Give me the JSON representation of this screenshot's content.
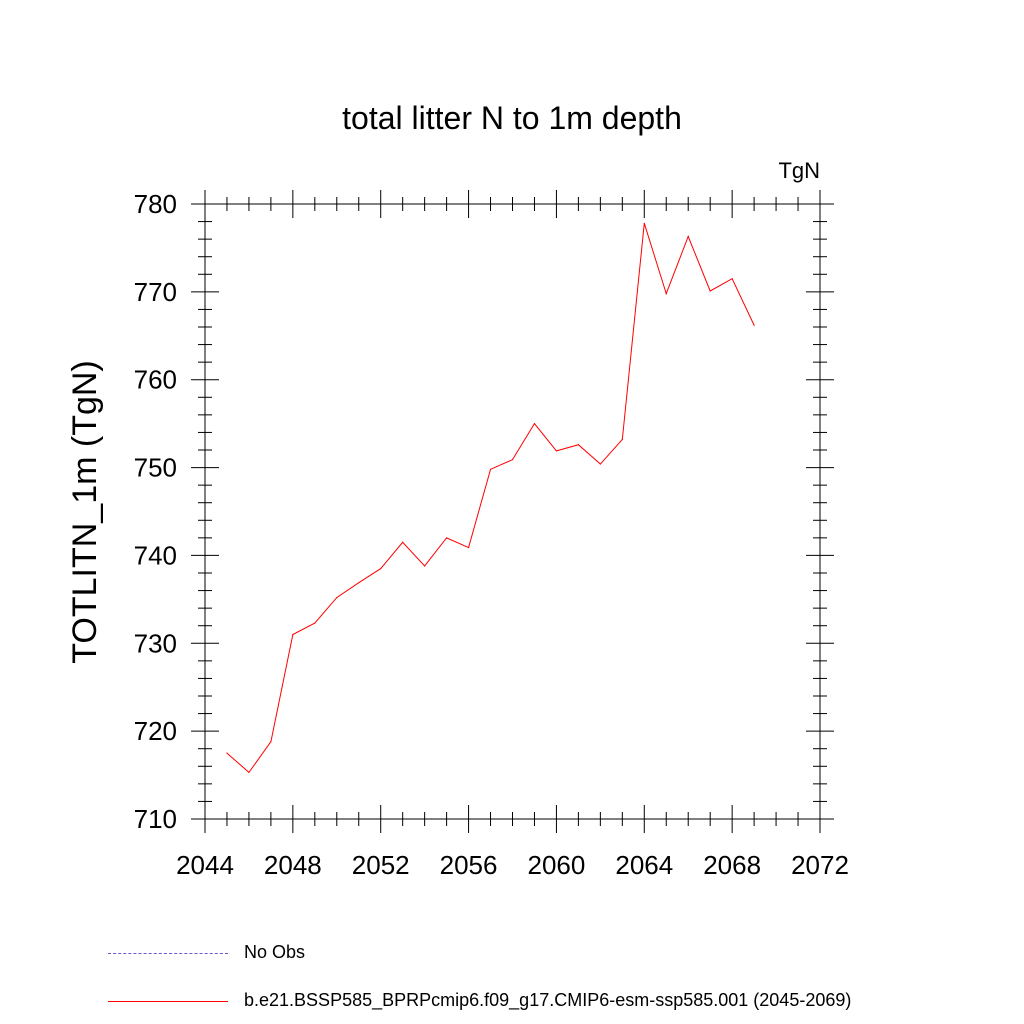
{
  "chart_data": {
    "type": "line",
    "title": "total litter N to 1m depth",
    "units_label": "TgN",
    "ylabel": "TOTLITN_1m  (TgN)",
    "xlabel": "",
    "xlim": [
      2044,
      2072
    ],
    "ylim": [
      710,
      780
    ],
    "x_ticks": [
      2044,
      2048,
      2052,
      2056,
      2060,
      2064,
      2068,
      2072
    ],
    "y_ticks": [
      710,
      720,
      730,
      740,
      750,
      760,
      770,
      780
    ],
    "grid": false,
    "legend_position": "bottom",
    "series": [
      {
        "name": "No Obs",
        "style": "dashed",
        "color": "#6a5acd",
        "x": [],
        "values": []
      },
      {
        "name": "b.e21.BSSP585_BPRPcmip6.f09_g17.CMIP6-esm-ssp585.001 (2045-2069)",
        "style": "solid",
        "color": "#ff0000",
        "x": [
          2045,
          2046,
          2047,
          2048,
          2049,
          2050,
          2051,
          2052,
          2053,
          2054,
          2055,
          2056,
          2057,
          2058,
          2059,
          2060,
          2061,
          2062,
          2063,
          2064,
          2065,
          2066,
          2067,
          2068,
          2069
        ],
        "values": [
          717.5,
          715.3,
          718.8,
          731.0,
          732.3,
          735.2,
          736.9,
          738.5,
          741.5,
          738.8,
          742.0,
          740.9,
          749.8,
          750.9,
          755.0,
          751.9,
          752.6,
          750.4,
          753.2,
          777.8,
          769.8,
          776.3,
          770.1,
          771.5,
          766.2
        ]
      }
    ]
  }
}
